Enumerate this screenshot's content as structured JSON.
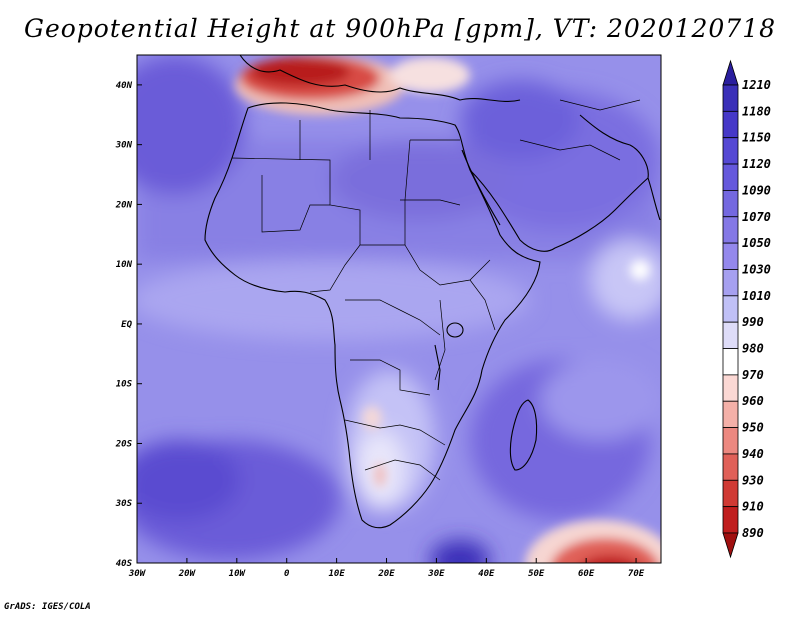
{
  "title": "Geopotential Height at 900hPa [gpm], VT: 2020120718",
  "footer": "GrADS: IGES/COLA",
  "map": {
    "lon_labels": [
      "30W",
      "20W",
      "10W",
      "0",
      "10E",
      "20E",
      "30E",
      "40E",
      "50E",
      "60E",
      "70E"
    ],
    "lat_labels": [
      "40N",
      "30N",
      "20N",
      "10N",
      "EQ",
      "10S",
      "20S",
      "30S",
      "40S"
    ],
    "lon_range": [
      -30,
      75
    ],
    "lat_range": [
      -40,
      45
    ]
  },
  "colorbar": {
    "levels": [
      "1210",
      "1180",
      "1150",
      "1120",
      "1090",
      "1070",
      "1050",
      "1030",
      "1010",
      "990",
      "980",
      "970",
      "960",
      "950",
      "940",
      "930",
      "910",
      "890"
    ],
    "colors": [
      "#2a1e9e",
      "#3a2fb8",
      "#4638c8",
      "#5548d4",
      "#6558dc",
      "#7468e0",
      "#8478e6",
      "#9488ec",
      "#a6a0f0",
      "#c0c0f6",
      "#dedcf8",
      "#ffffff",
      "#fbd8d4",
      "#f4b0a8",
      "#ec8880",
      "#e06058",
      "#d03a34",
      "#c01e1e",
      "#a01010"
    ],
    "colors_note": "top-to-bottom: blue (high heights) to red (low heights)"
  }
}
